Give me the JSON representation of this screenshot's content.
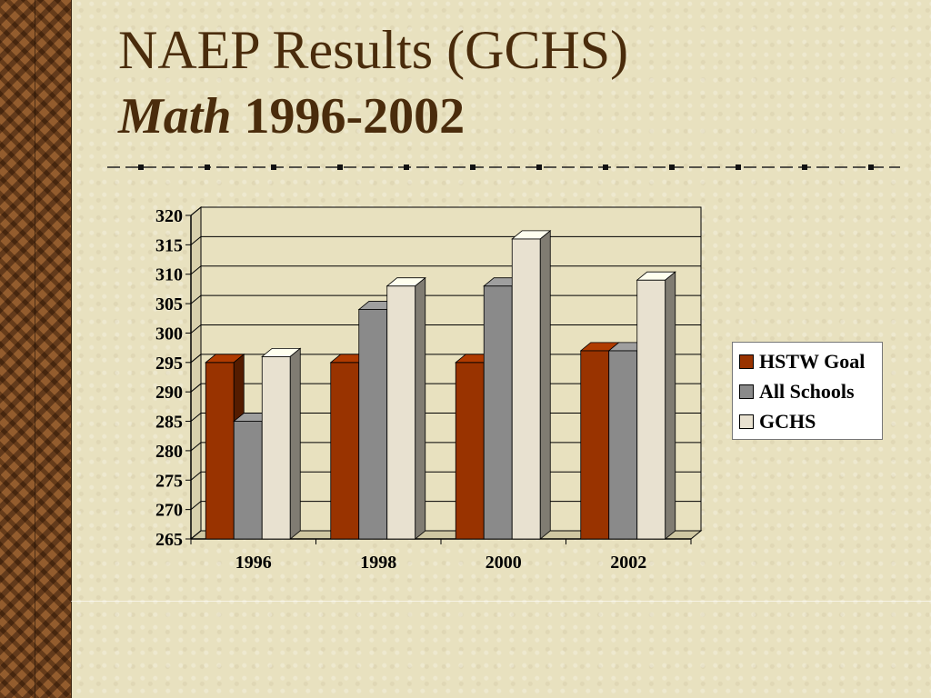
{
  "slide": {
    "title": "NAEP Results (GCHS)",
    "subtitle_italic": "Math",
    "subtitle_rest": " 1996-2002"
  },
  "chart_data": {
    "type": "bar",
    "style": "3d-clustered-column",
    "categories": [
      "1996",
      "1998",
      "2000",
      "2002"
    ],
    "series": [
      {
        "name": "HSTW Goal",
        "values": [
          295,
          295,
          295,
          297
        ],
        "color": "#993300"
      },
      {
        "name": "All Schools",
        "values": [
          285,
          304,
          308,
          297
        ],
        "color": "#8a8a8a"
      },
      {
        "name": "GCHS",
        "values": [
          296,
          308,
          316,
          309
        ],
        "color": "#e8e1d0"
      }
    ],
    "yticks": [
      "265",
      "270",
      "275",
      "280",
      "285",
      "290",
      "295",
      "300",
      "305",
      "310",
      "315",
      "320"
    ],
    "ylim": [
      265,
      320
    ],
    "grid": true,
    "legend_position": "right"
  },
  "colors": {
    "title": "#4a2c0c",
    "background": "#e8e1bf",
    "axis": "#000000"
  }
}
